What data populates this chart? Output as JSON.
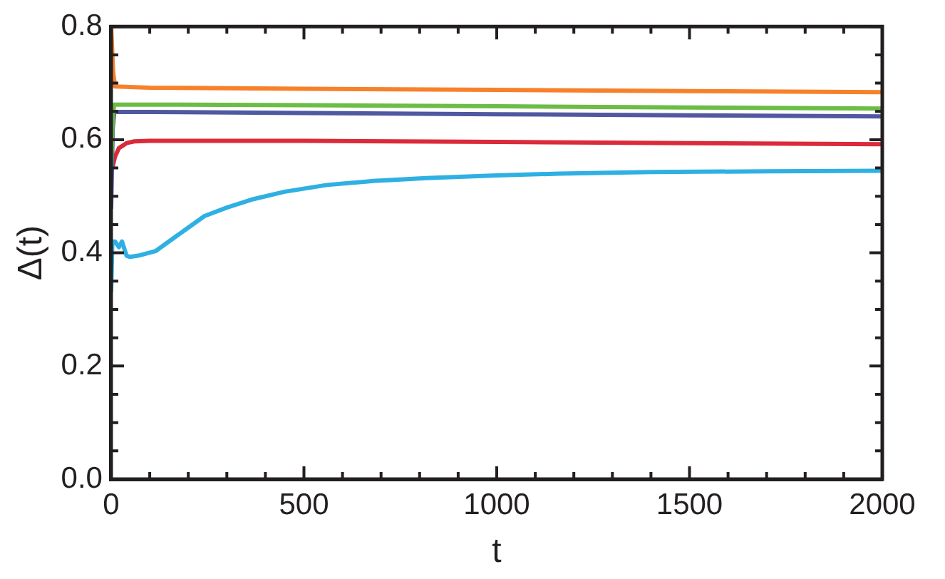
{
  "chart_data": {
    "type": "line",
    "xlabel": "t",
    "ylabel": "Δ(t)",
    "xlim": [
      0,
      2000
    ],
    "xticks": [
      0,
      {
        "value": 100,
        "label": null
      },
      {
        "value": 200,
        "label": null
      },
      {
        "value": 300,
        "label": null
      },
      {
        "value": 400,
        "label": null
      },
      500,
      {
        "value": 600,
        "label": null
      },
      {
        "value": 700,
        "label": null
      },
      {
        "value": 800,
        "label": null
      },
      {
        "value": 900,
        "label": null
      },
      1000,
      {
        "value": 1100,
        "label": null
      },
      {
        "value": 1200,
        "label": null
      },
      {
        "value": 1300,
        "label": null
      },
      {
        "value": 1400,
        "label": null
      },
      1500,
      {
        "value": 1600,
        "label": null
      },
      {
        "value": 1700,
        "label": null
      },
      {
        "value": 1800,
        "label": null
      },
      {
        "value": 1900,
        "label": null
      },
      2000
    ],
    "ylim": [
      0,
      0.8
    ],
    "yticks": [
      {
        "value": 0,
        "label": "0.0"
      },
      {
        "value": 0.05,
        "label": null
      },
      {
        "value": 0.1,
        "label": null
      },
      {
        "value": 0.15,
        "label": null
      },
      0.2,
      {
        "value": 0.25,
        "label": null
      },
      {
        "value": 0.3,
        "label": null
      },
      {
        "value": 0.35,
        "label": null
      },
      0.4,
      {
        "value": 0.45,
        "label": null
      },
      {
        "value": 0.5,
        "label": null
      },
      {
        "value": 0.55,
        "label": null
      },
      0.6,
      {
        "value": 0.65,
        "label": null
      },
      {
        "value": 0.7,
        "label": null
      },
      {
        "value": 0.75,
        "label": null
      },
      0.8
    ],
    "grid": false,
    "legend": false,
    "marker": "none",
    "line_style": "solid",
    "series": [
      {
        "color": "#f7812a",
        "x": [
          0,
          5,
          10,
          100,
          500,
          1000,
          1500,
          2000
        ],
        "values": [
          0.8,
          0.72,
          0.694,
          0.692,
          0.69,
          0.688,
          0.686,
          0.684
        ]
      },
      {
        "color": "#6bbd45",
        "x": [
          0,
          4,
          8,
          100,
          500,
          1000,
          1500,
          2000
        ],
        "values": [
          0.55,
          0.64,
          0.662,
          0.662,
          0.661,
          0.659,
          0.657,
          0.655
        ]
      },
      {
        "color": "#5058a0",
        "x": [
          0,
          4,
          8,
          100,
          500,
          1000,
          1500,
          2000
        ],
        "values": [
          0.48,
          0.62,
          0.649,
          0.649,
          0.647,
          0.645,
          0.643,
          0.641
        ]
      },
      {
        "color": "#db2a3a",
        "x": [
          3,
          10,
          20,
          40,
          60,
          100,
          500,
          1000,
          1500,
          2000
        ],
        "values": [
          0.55,
          0.57,
          0.585,
          0.594,
          0.597,
          0.598,
          0.598,
          0.596,
          0.594,
          0.592
        ]
      },
      {
        "color": "#2fb0e3",
        "x": [
          0,
          3,
          10,
          20,
          28,
          40,
          48,
          70,
          115,
          170,
          242,
          300,
          369,
          450,
          560,
          680,
          817,
          1000,
          1163,
          1400,
          1700,
          2000
        ],
        "values": [
          0.333,
          0.42,
          0.42,
          0.41,
          0.42,
          0.395,
          0.393,
          0.395,
          0.403,
          0.43,
          0.465,
          0.48,
          0.495,
          0.508,
          0.52,
          0.527,
          0.532,
          0.537,
          0.54,
          0.543,
          0.544,
          0.545
        ]
      }
    ]
  }
}
